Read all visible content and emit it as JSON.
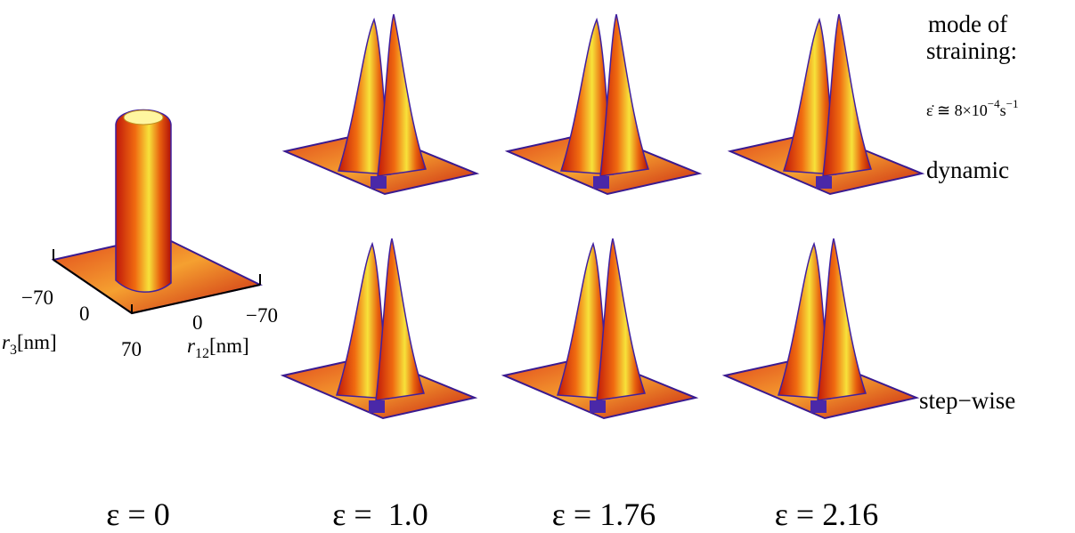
{
  "legend": {
    "title_lines": [
      "mode of",
      "straining:"
    ],
    "rate": {
      "base": "ε̇ ≅ 8×10",
      "exp": "−4",
      "unit": "s",
      "unit_exp": "−1"
    },
    "rows": [
      "dynamic",
      "step−wise"
    ]
  },
  "axes": {
    "r3": {
      "symbol": "r",
      "sub": "3",
      "unit": "[nm]",
      "ticks": [
        "−70",
        "0",
        "70"
      ]
    },
    "r12": {
      "symbol": "r",
      "sub": "12",
      "unit": "[nm]",
      "ticks": [
        "0",
        "−70"
      ]
    }
  },
  "captions": [
    "ε = 0",
    "ε =  1.0",
    "ε = 1.76",
    "ε = 2.16"
  ]
}
